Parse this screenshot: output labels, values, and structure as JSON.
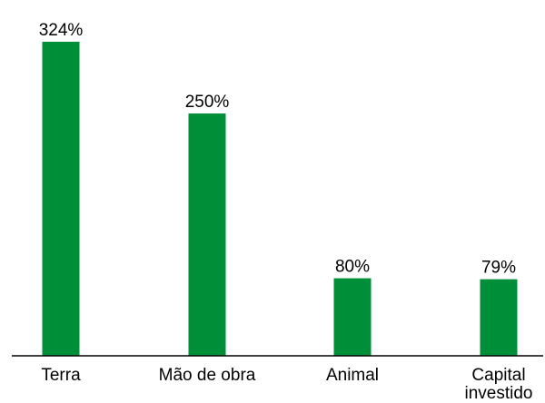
{
  "chart_data": {
    "type": "bar",
    "categories": [
      [
        "Terra"
      ],
      [
        "Mão de obra"
      ],
      [
        "Animal"
      ],
      [
        "Capital",
        "investido"
      ]
    ],
    "values": [
      324,
      250,
      80,
      79
    ],
    "value_labels": [
      "324%",
      "250%",
      "80%",
      "79%"
    ],
    "unit": "%",
    "ylim": [
      0,
      324
    ],
    "grid": false,
    "legend": "none",
    "title": "",
    "xlabel": "",
    "ylabel": ""
  },
  "colors": {
    "bar": "#008F39",
    "axis": "#000000",
    "text": "#000000"
  }
}
